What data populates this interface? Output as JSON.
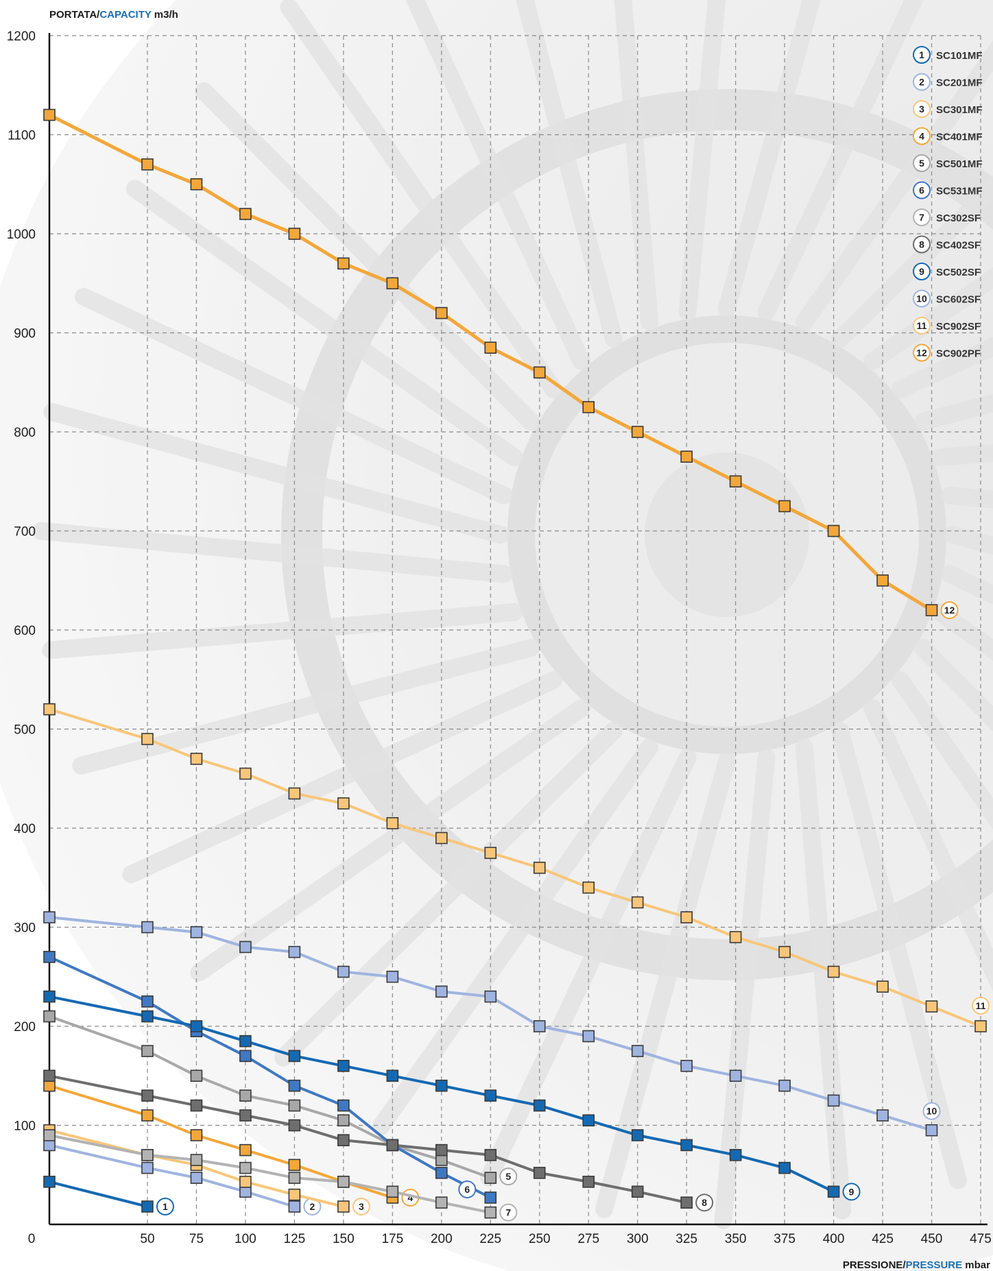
{
  "chart_data": {
    "type": "line",
    "ylabel_parts": [
      "PORTATA",
      "/",
      "CAPACITY",
      " m3/h"
    ],
    "xlabel_parts": [
      "PRESSIONE",
      "/",
      "PRESSURE",
      " mbar"
    ],
    "colors": {
      "title_dark": "#1c1c1c",
      "title_accent": "#1b6fb8",
      "grid": "#8a8a8a",
      "axis": "#111111"
    },
    "xlim": [
      0,
      475
    ],
    "ylim": [
      0,
      1200
    ],
    "x_ticks": [
      0,
      50,
      75,
      100,
      125,
      150,
      175,
      200,
      225,
      250,
      275,
      300,
      325,
      350,
      375,
      400,
      425,
      450,
      475
    ],
    "y_ticks": [
      100,
      200,
      300,
      400,
      500,
      600,
      700,
      800,
      900,
      1000,
      1100,
      1200
    ],
    "grid": true,
    "legend_position": "top-right",
    "series": [
      {
        "id": "1",
        "name": "SC101MF",
        "color": "#1469b3",
        "width": 4,
        "x": [
          0,
          50
        ],
        "y": [
          43,
          18
        ]
      },
      {
        "id": "2",
        "name": "SC201MF",
        "color": "#9fb4e0",
        "width": 4,
        "x": [
          0,
          50,
          75,
          100,
          125
        ],
        "y": [
          80,
          57,
          47,
          33,
          18
        ]
      },
      {
        "id": "3",
        "name": "SC301MF",
        "color": "#f8c67a",
        "width": 4,
        "x": [
          0,
          50,
          75,
          100,
          125,
          150
        ],
        "y": [
          95,
          70,
          60,
          43,
          30,
          18
        ]
      },
      {
        "id": "4",
        "name": "SC401MF",
        "color": "#f3a73a",
        "width": 4,
        "x": [
          0,
          50,
          75,
          100,
          125,
          150,
          175
        ],
        "y": [
          140,
          110,
          90,
          75,
          60,
          43,
          27
        ]
      },
      {
        "id": "5",
        "name": "SC501MF",
        "color": "#a8a8a8",
        "width": 4,
        "x": [
          0,
          50,
          75,
          100,
          125,
          150,
          175,
          200,
          225
        ],
        "y": [
          210,
          175,
          150,
          130,
          120,
          105,
          80,
          65,
          47
        ]
      },
      {
        "id": "6",
        "name": "SC531MF",
        "color": "#3f78c4",
        "width": 4,
        "x": [
          0,
          50,
          75,
          100,
          125,
          150,
          175,
          200,
          225
        ],
        "y": [
          270,
          225,
          195,
          170,
          140,
          120,
          80,
          52,
          27
        ]
      },
      {
        "id": "7",
        "name": "SC302SF",
        "color": "#b3b3b3",
        "width": 4,
        "x": [
          0,
          50,
          75,
          100,
          125,
          150,
          175,
          200,
          225
        ],
        "y": [
          90,
          70,
          65,
          57,
          47,
          43,
          33,
          22,
          12
        ]
      },
      {
        "id": "8",
        "name": "SC402SF",
        "color": "#6e6e6e",
        "width": 4,
        "x": [
          0,
          50,
          75,
          100,
          125,
          150,
          175,
          200,
          225,
          250,
          275,
          300,
          325
        ],
        "y": [
          150,
          130,
          120,
          110,
          100,
          85,
          80,
          75,
          70,
          52,
          43,
          33,
          22
        ]
      },
      {
        "id": "9",
        "name": "SC502SF",
        "color": "#1469b3",
        "width": 4,
        "x": [
          0,
          50,
          75,
          100,
          125,
          150,
          175,
          200,
          225,
          250,
          275,
          300,
          325,
          350,
          375,
          400
        ],
        "y": [
          230,
          210,
          200,
          185,
          170,
          160,
          150,
          140,
          130,
          120,
          105,
          90,
          80,
          70,
          57,
          33
        ]
      },
      {
        "id": "10",
        "name": "SC602SF",
        "color": "#9fb4e0",
        "width": 4,
        "x": [
          0,
          50,
          75,
          100,
          125,
          150,
          175,
          200,
          225,
          250,
          275,
          300,
          325,
          350,
          375,
          400,
          425,
          450
        ],
        "y": [
          310,
          300,
          295,
          280,
          275,
          255,
          250,
          235,
          230,
          200,
          190,
          175,
          160,
          150,
          140,
          125,
          110,
          95
        ]
      },
      {
        "id": "11",
        "name": "SC902SF",
        "color": "#f8c67a",
        "width": 4,
        "x": [
          0,
          50,
          75,
          100,
          125,
          150,
          175,
          200,
          225,
          250,
          275,
          300,
          325,
          350,
          375,
          400,
          425,
          450,
          475
        ],
        "y": [
          520,
          490,
          470,
          455,
          435,
          425,
          405,
          390,
          375,
          360,
          340,
          325,
          310,
          290,
          275,
          255,
          240,
          220,
          200
        ]
      },
      {
        "id": "12",
        "name": "SC902PF",
        "color": "#f3a73a",
        "width": 5,
        "x": [
          0,
          50,
          75,
          100,
          125,
          150,
          175,
          200,
          225,
          250,
          275,
          300,
          325,
          350,
          375,
          400,
          425,
          450
        ],
        "y": [
          1120,
          1070,
          1050,
          1020,
          1000,
          970,
          950,
          920,
          885,
          860,
          825,
          800,
          775,
          750,
          725,
          700,
          650,
          620
        ]
      }
    ]
  }
}
